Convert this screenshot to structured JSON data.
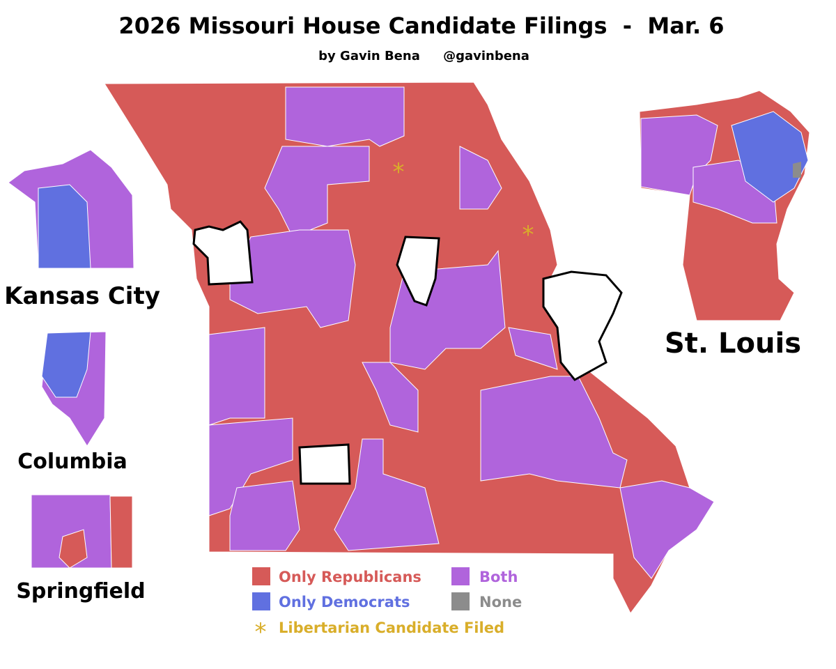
{
  "header": {
    "title": "2026 Missouri House Candidate Filings  -  Mar. 6",
    "byline": "by Gavin Bena",
    "handle": "@gavinbena"
  },
  "insets": [
    {
      "label": "Kansas City"
    },
    {
      "label": "Columbia"
    },
    {
      "label": "Springfield"
    },
    {
      "label": "St. Louis"
    }
  ],
  "legend": [
    {
      "label": "Only Republicans",
      "color": "#d65a58"
    },
    {
      "label": "Both",
      "color": "#b064dc"
    },
    {
      "label": "Only Democrats",
      "color": "#6070e0"
    },
    {
      "label": "None",
      "color": "#8c8c8c"
    },
    {
      "label": "Libertarian Candidate Filed",
      "color": "#d9ae2a"
    }
  ]
}
